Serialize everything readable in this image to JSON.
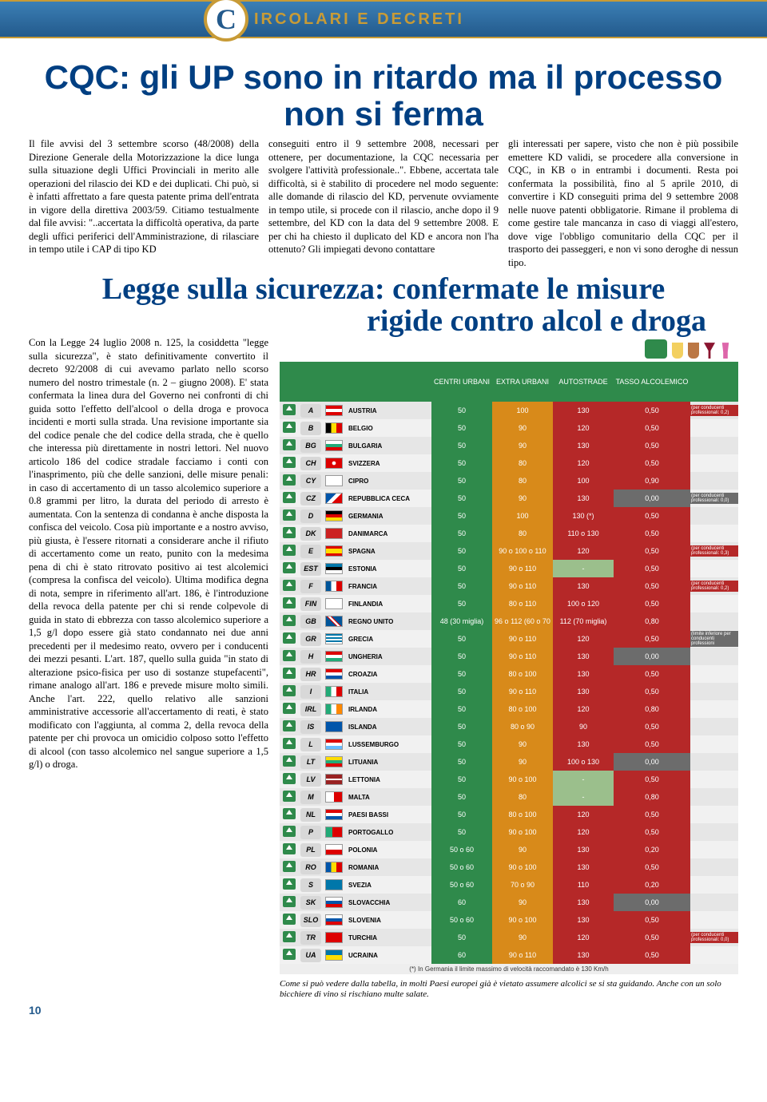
{
  "header": {
    "tagline": "IRCOLARI E DECRETI",
    "logo": "C"
  },
  "article1": {
    "title": "CQC: gli UP sono in ritardo ma il processo non si ferma",
    "c1": "Il file avvisi del 3 settembre scorso (48/2008) della Direzione Generale della Motorizzazione la dice lunga sulla situazione degli Uffici Provinciali in merito alle operazioni del rilascio dei KD e dei duplicati. Chi può, si è infatti affrettato a fare questa patente prima dell'entrata in vigore della direttiva 2003/59. Citiamo testualmente dal file avvisi: \"..accertata la difficoltà operativa, da parte degli uffici periferici dell'Amministrazione, di rilasciare in tempo utile i CAP di tipo KD",
    "c2": "conseguiti entro il 9 settembre 2008, necessari per ottenere, per documentazione, la CQC necessaria per svolgere l'attività professionale..\". Ebbene, accertata tale difficoltà, si è stabilito di procedere nel modo seguente: alle domande di rilascio del KD, pervenute ovviamente in tempo utile, si procede con il rilascio, anche dopo il 9 settembre, del KD con la data del 9 settembre 2008. E per chi ha chiesto il duplicato del KD e ancora non l'ha ottenuto? Gli impiegati devono contattare",
    "c3": "gli interessati per sapere, visto che non è più possibile emettere KD validi, se procedere alla conversione in CQC, in KB o in entrambi i documenti. Resta poi confermata la possibilità, fino al 5 aprile 2010, di convertire i KD conseguiti prima del 9 settembre 2008 nelle nuove patenti obbligatorie. Rimane il problema di come gestire tale mancanza in caso di viaggi all'estero, dove vige l'obbligo comunitario della CQC per il trasporto dei passeggeri, e non vi sono deroghe di nessun tipo."
  },
  "article2": {
    "title_l1": "Legge sulla sicurezza: confermate le misure",
    "title_l2": "rigide contro alcol e droga",
    "body": "Con la Legge 24 luglio 2008 n. 125, la cosiddetta \"legge sulla sicurezza\", è stato definitivamente convertito il decreto 92/2008 di cui avevamo parlato nello scorso numero del nostro trimestale (n. 2 – giugno 2008). E' stata confermata la linea dura del Governo nei confronti di chi guida sotto l'effetto dell'alcool o della droga e provoca incidenti e morti sulla strada. Una revisione importante sia del codice penale che del codice della strada, che è quello che interessa più direttamente in nostri lettori. Nel nuovo articolo 186 del codice stradale facciamo i conti con l'inasprimento, più che delle sanzioni, delle misure penali: in caso di accertamento di un tasso alcolemico superiore a 0.8 grammi per litro, la durata del periodo di arresto è aumentata. Con la sentenza di condanna è anche disposta la confisca del veicolo. Cosa più importante e a nostro avviso, più giusta, è l'essere ritornati a considerare anche il rifiuto di accertamento come un reato, punito con la medesima pena di chi è stato ritrovato positivo ai test alcolemici (compresa la confisca del veicolo). Ultima modifica degna di nota, sempre in riferimento all'art. 186, è l'introduzione della revoca della patente per chi si rende colpevole di guida in stato di ebbrezza con tasso alcolemico superiore a 1,5 g/l dopo essere già stato condannato nei due anni precedenti per il medesimo reato, ovvero per i conducenti dei mezzi pesanti. L'art. 187, quello sulla guida \"in stato di alterazione psico-fisica per uso di sostanze stupefacenti\", rimane analogo all'art. 186 e prevede misure molto simili. Anche l'art. 222, quello relativo alle sanzioni amministrative accessorie all'accertamento di reati, è stato modificato con l'aggiunta, al comma 2, della revoca della patente per chi provoca un omicidio colposo sotto l'effetto di alcool (con tasso alcolemico nel sangue superiore a 1,5 g/l) o droga."
  },
  "table": {
    "headers": [
      "CENTRI URBANI",
      "EXTRA URBANI",
      "AUTOSTRADE",
      "TASSO ALCOLEMICO"
    ],
    "rows": [
      {
        "code": "A",
        "name": "AUSTRIA",
        "flag": "linear-gradient(180deg,#d00 33%,#fff 33%,#fff 66%,#d00 66%)",
        "v": [
          "50",
          "100",
          "130"
        ],
        "bac": "0,50",
        "note": "(per conducenti professionali: 0,2)",
        "noteColor": "#b52828"
      },
      {
        "code": "B",
        "name": "BELGIO",
        "flag": "linear-gradient(90deg,#000 33%,#fd0 33%,#fd0 66%,#d00 66%)",
        "v": [
          "50",
          "90",
          "120"
        ],
        "bac": "0,50"
      },
      {
        "code": "BG",
        "name": "BULGARIA",
        "flag": "linear-gradient(180deg,#fff 33%,#2a7 33%,#2a7 66%,#d00 66%)",
        "v": [
          "50",
          "90",
          "130"
        ],
        "bac": "0,50"
      },
      {
        "code": "CH",
        "name": "SVIZZERA",
        "flag": "radial-gradient(circle,#fff 20%,#d00 20%)",
        "v": [
          "50",
          "80",
          "120"
        ],
        "bac": "0,50"
      },
      {
        "code": "CY",
        "name": "CIPRO",
        "flag": "#fff",
        "v": [
          "50",
          "80",
          "100"
        ],
        "bac": "0,90"
      },
      {
        "code": "CZ",
        "name": "REPUBBLICA CECA",
        "flag": "linear-gradient(135deg,#05a 40%,#fff 40%,#fff 60%,#d00 60%)",
        "v": [
          "50",
          "90",
          "130"
        ],
        "bac": "0,00",
        "bacColor": "grey",
        "note": "(per conducenti professionali: 0,0)",
        "noteColor": "#6c6c6c"
      },
      {
        "code": "D",
        "name": "GERMANIA",
        "flag": "linear-gradient(180deg,#000 33%,#d00 33%,#d00 66%,#fd0 66%)",
        "v": [
          "50",
          "100",
          "130 (*)"
        ],
        "bac": "0,50"
      },
      {
        "code": "DK",
        "name": "DANIMARCA",
        "flag": "#c22",
        "v": [
          "50",
          "80",
          "110 o 130"
        ],
        "bac": "0,50"
      },
      {
        "code": "E",
        "name": "SPAGNA",
        "flag": "linear-gradient(180deg,#d00 25%,#fd0 25%,#fd0 75%,#d00 75%)",
        "v": [
          "50",
          "90 o 100 o 110",
          "120"
        ],
        "bac": "0,50",
        "note": "(per conducenti professionali: 0,3)",
        "noteColor": "#b52828"
      },
      {
        "code": "EST",
        "name": "ESTONIA",
        "flag": "linear-gradient(180deg,#07a 33%,#000 33%,#000 66%,#fff 66%)",
        "v": [
          "50",
          "90 o 110",
          "-"
        ],
        "v3Color": "ltg",
        "bac": "0,50"
      },
      {
        "code": "F",
        "name": "FRANCIA",
        "flag": "linear-gradient(90deg,#059 33%,#fff 33%,#fff 66%,#d00 66%)",
        "v": [
          "50",
          "90 o 110",
          "130"
        ],
        "bac": "0,50",
        "note": "(per conducenti professionali: 0,2)",
        "noteColor": "#b52828"
      },
      {
        "code": "FIN",
        "name": "FINLANDIA",
        "flag": "#fff",
        "v": [
          "50",
          "80 o 110",
          "100 o 120"
        ],
        "bac": "0,50"
      },
      {
        "code": "GB",
        "name": "REGNO UNITO",
        "flag": "linear-gradient(45deg,#059 40%,#d00 40%,#d00 45%,#fff 45%,#fff 55%,#d00 55%,#d00 60%,#059 60%)",
        "v": [
          "48 (30 miglia)",
          "96 o 112 (60 o 70 miglia)",
          "112 (70 miglia)"
        ],
        "bac": "0,80"
      },
      {
        "code": "GR",
        "name": "GRECIA",
        "flag": "repeating-linear-gradient(180deg,#07a,#07a 2px,#fff 2px,#fff 4px)",
        "v": [
          "50",
          "90 o 110",
          "120"
        ],
        "bac": "0,50",
        "note": "(limite inferiore per conducenti professioni",
        "noteColor": "#6c6c6c"
      },
      {
        "code": "H",
        "name": "UNGHERIA",
        "flag": "linear-gradient(180deg,#d00 33%,#fff 33%,#fff 66%,#2a7 66%)",
        "v": [
          "50",
          "90 o 110",
          "130"
        ],
        "bac": "0,00",
        "bacColor": "grey"
      },
      {
        "code": "HR",
        "name": "CROAZIA",
        "flag": "linear-gradient(180deg,#d00 33%,#fff 33%,#fff 66%,#05a 66%)",
        "v": [
          "50",
          "80 o 100",
          "130"
        ],
        "bac": "0,50"
      },
      {
        "code": "I",
        "name": "ITALIA",
        "flag": "linear-gradient(90deg,#2a7 33%,#fff 33%,#fff 66%,#d00 66%)",
        "v": [
          "50",
          "90 o 110",
          "130"
        ],
        "bac": "0,50"
      },
      {
        "code": "IRL",
        "name": "IRLANDA",
        "flag": "linear-gradient(90deg,#2a7 33%,#fff 33%,#fff 66%,#f80 66%)",
        "v": [
          "50",
          "80 o 100",
          "120"
        ],
        "bac": "0,80"
      },
      {
        "code": "IS",
        "name": "ISLANDA",
        "flag": "#05a",
        "v": [
          "50",
          "80 o 90",
          "90"
        ],
        "bac": "0,50"
      },
      {
        "code": "L",
        "name": "LUSSEMBURGO",
        "flag": "linear-gradient(180deg,#d00 33%,#fff 33%,#fff 66%,#6bf 66%)",
        "v": [
          "50",
          "90",
          "130"
        ],
        "bac": "0,50"
      },
      {
        "code": "LT",
        "name": "LITUANIA",
        "flag": "linear-gradient(180deg,#fd0 33%,#2a7 33%,#2a7 66%,#d00 66%)",
        "v": [
          "50",
          "90",
          "100 o 130"
        ],
        "bac": "0,00",
        "bacColor": "grey"
      },
      {
        "code": "LV",
        "name": "LETTONIA",
        "flag": "linear-gradient(180deg,#922 40%,#fff 40%,#fff 60%,#922 60%)",
        "v": [
          "50",
          "90 o 100",
          "-"
        ],
        "v3Color": "ltg",
        "bac": "0,50"
      },
      {
        "code": "M",
        "name": "MALTA",
        "flag": "linear-gradient(90deg,#fff 50%,#d00 50%)",
        "v": [
          "50",
          "80",
          "-"
        ],
        "v3Color": "ltg",
        "bac": "0,80"
      },
      {
        "code": "NL",
        "name": "PAESI BASSI",
        "flag": "linear-gradient(180deg,#d00 33%,#fff 33%,#fff 66%,#05a 66%)",
        "v": [
          "50",
          "80 o 100",
          "120"
        ],
        "bac": "0,50"
      },
      {
        "code": "P",
        "name": "PORTOGALLO",
        "flag": "linear-gradient(90deg,#2a7 40%,#d00 40%)",
        "v": [
          "50",
          "90 o 100",
          "120"
        ],
        "bac": "0,50"
      },
      {
        "code": "PL",
        "name": "POLONIA",
        "flag": "linear-gradient(180deg,#fff 50%,#d00 50%)",
        "v": [
          "50 o 60",
          "90",
          "130"
        ],
        "bac": "0,20"
      },
      {
        "code": "RO",
        "name": "ROMANIA",
        "flag": "linear-gradient(90deg,#05a 33%,#fd0 33%,#fd0 66%,#d00 66%)",
        "v": [
          "50 o 60",
          "90 o 100",
          "130"
        ],
        "bac": "0,50"
      },
      {
        "code": "S",
        "name": "SVEZIA",
        "flag": "#07a",
        "v": [
          "50 o 60",
          "70 o 90",
          "110"
        ],
        "bac": "0,20"
      },
      {
        "code": "SK",
        "name": "SLOVACCHIA",
        "flag": "linear-gradient(180deg,#fff 33%,#05a 33%,#05a 66%,#d00 66%)",
        "v": [
          "60",
          "90",
          "130"
        ],
        "bac": "0,00",
        "bacColor": "grey"
      },
      {
        "code": "SLO",
        "name": "SLOVENIA",
        "flag": "linear-gradient(180deg,#fff 33%,#05a 33%,#05a 66%,#d00 66%)",
        "v": [
          "50 o 60",
          "90 o 100",
          "130"
        ],
        "bac": "0,50"
      },
      {
        "code": "TR",
        "name": "TURCHIA",
        "flag": "#d00",
        "v": [
          "50",
          "90",
          "120"
        ],
        "bac": "0,50",
        "note": "(per conducenti professionali: 0,0)",
        "noteColor": "#b52828"
      },
      {
        "code": "UA",
        "name": "UCRAINA",
        "flag": "linear-gradient(180deg,#07a 50%,#fd0 50%)",
        "v": [
          "60",
          "90 o 110",
          "130"
        ],
        "bac": "0,50"
      }
    ],
    "footnote": "(*) In Germania il limite massimo di velocità raccomandato è 130 Km/h",
    "caption": "Come si può vedere dalla tabella, in molti Paesi europei già è vietato assumere alcolici se si sta guidando. Anche con un solo bicchiere di vino si rischiano multe salate."
  },
  "pageNumber": "10"
}
